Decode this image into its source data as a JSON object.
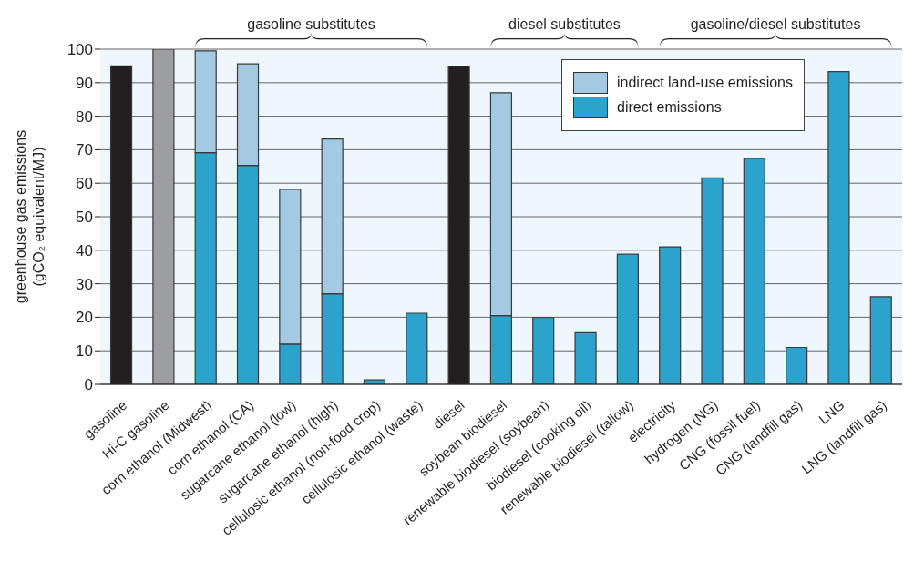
{
  "chart_data": {
    "type": "bar",
    "stacked": true,
    "ylabel": "greenhouse gas emissions\n(gCO₂ equivalent/MJ)",
    "categories": [
      "gasoline",
      "Hi-C gasoline",
      "corn ethanol (Midwest)",
      "corn ethanol (CA)",
      "sugarcane ethanol (low)",
      "sugarcane ethanol (high)",
      "cellulosic ethanol (non-food crop)",
      "cellulosic ethanol (waste)",
      "diesel",
      "soybean biodiesel",
      "renewable biodiesel (soybean)",
      "biodiesel (cooking oil)",
      "renewable biodiesel (tallow)",
      "electricity",
      "hydrogen (NG)",
      "CNG (fossil fuel)",
      "CNG (landfill gas)",
      "LNG",
      "LNG (landfill gas)"
    ],
    "series": [
      {
        "name": "direct emissions",
        "color": "#2ca3cc",
        "colors": [
          "#231f20",
          "#9d9ea2",
          "#2ca3cc",
          "#2ca3cc",
          "#2ca3cc",
          "#2ca3cc",
          "#2ca3cc",
          "#2ca3cc",
          "#231f20",
          "#2ca3cc",
          "#2ca3cc",
          "#2ca3cc",
          "#2ca3cc",
          "#2ca3cc",
          "#2ca3cc",
          "#2ca3cc",
          "#2ca3cc",
          "#2ca3cc",
          "#2ca3cc"
        ],
        "values": [
          95,
          100,
          69.1,
          65.3,
          12,
          27,
          1.3,
          21.2,
          94.9,
          20.5,
          19.9,
          15.4,
          38.8,
          41,
          61.6,
          67.4,
          11,
          93.3,
          26.1
        ]
      },
      {
        "name": "indirect land-use emissions",
        "color": "#a3cae2",
        "values": [
          null,
          null,
          30.4,
          30.3,
          46.2,
          46.2,
          null,
          null,
          null,
          66.5,
          null,
          null,
          null,
          null,
          null,
          null,
          null,
          null,
          null
        ]
      }
    ],
    "ylim": [
      0,
      100
    ],
    "yticks": [
      0,
      10,
      20,
      30,
      40,
      50,
      60,
      70,
      80,
      90,
      100
    ],
    "grid": "y",
    "legend": "top right",
    "annotations": [
      "gasoline substitutes",
      "diesel substitutes",
      "gasoline/diesel substitutes"
    ]
  }
}
